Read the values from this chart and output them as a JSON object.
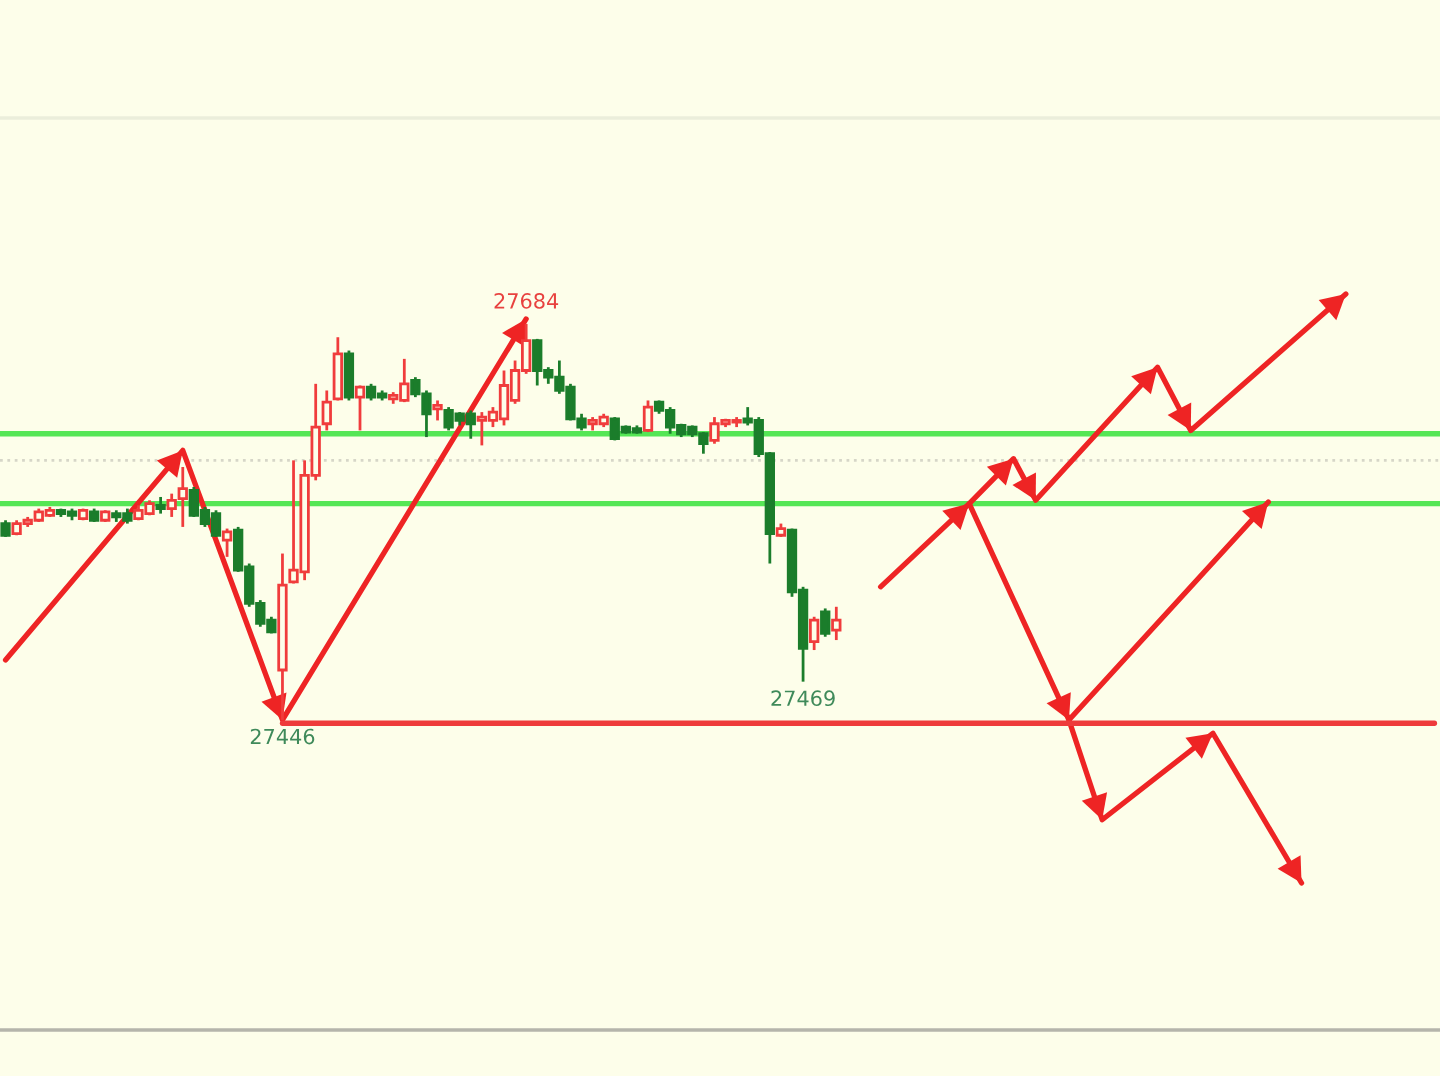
{
  "chart_data": {
    "type": "candlestick",
    "categories": [
      null,
      null,
      null,
      null,
      null,
      null,
      null,
      null,
      null,
      null,
      null,
      null,
      null,
      null,
      null,
      null,
      null,
      null,
      null,
      null,
      null,
      null,
      null,
      null,
      null,
      null,
      null,
      null,
      null,
      null,
      null,
      null,
      null,
      null,
      null,
      null,
      null,
      null,
      null,
      null,
      null,
      null,
      null,
      null,
      null,
      null,
      null,
      null,
      null,
      null,
      null,
      null,
      null,
      null,
      null,
      null,
      null,
      null,
      null,
      null,
      null,
      null,
      null,
      null,
      null,
      null,
      null,
      null,
      null,
      null,
      null,
      null,
      null,
      null,
      null,
      null,
      null,
      null,
      null,
      null,
      null,
      null,
      null,
      null,
      null,
      null,
      null,
      null,
      null,
      null,
      null,
      null,
      null,
      null,
      null,
      null,
      null,
      null,
      null,
      null,
      null,
      null,
      null,
      null,
      null,
      null,
      null,
      null,
      null,
      null,
      null,
      null,
      null,
      null,
      null,
      null,
      null,
      null,
      null,
      null,
      null,
      null,
      null,
      null,
      null,
      null,
      null,
      null,
      null,
      null
    ],
    "ohlc": [
      [
        27564,
        27566,
        27556,
        27557
      ],
      [
        27558,
        27566,
        27557,
        27564
      ],
      [
        27564,
        27568,
        27562,
        27566
      ],
      [
        27566,
        27573,
        27565,
        27571
      ],
      [
        27569,
        27574,
        27568,
        27572
      ],
      [
        27572,
        27573,
        27568,
        27570
      ],
      [
        27571,
        27573,
        27566,
        27569
      ],
      [
        27567,
        27573,
        27566,
        27572
      ],
      [
        27571,
        27573,
        27565,
        27566
      ],
      [
        27566,
        27572,
        27565,
        27571
      ],
      [
        27570,
        27572,
        27565,
        27568
      ],
      [
        27570,
        27573,
        27564,
        27566
      ],
      [
        27567,
        27575,
        27566,
        27572
      ],
      [
        27570,
        27578,
        27569,
        27576
      ],
      [
        27575,
        27580,
        27570,
        27573
      ],
      [
        27573,
        27582,
        27568,
        27578
      ],
      [
        27579,
        27598,
        27562,
        27585
      ],
      [
        27584,
        27586,
        27568,
        27569
      ],
      [
        27572,
        27574,
        27562,
        27564
      ],
      [
        27570,
        27572,
        27556,
        27557
      ],
      [
        27554,
        27561,
        27544,
        27559
      ],
      [
        27560,
        27562,
        27535,
        27536
      ],
      [
        27538,
        27540,
        27514,
        27516
      ],
      [
        27516,
        27518,
        27502,
        27504
      ],
      [
        27506,
        27508,
        27498,
        27499
      ],
      [
        27476,
        27546,
        27446,
        27527
      ],
      [
        27529,
        27602,
        27528,
        27536
      ],
      [
        27535,
        27602,
        27530,
        27593
      ],
      [
        27593,
        27648,
        27590,
        27622
      ],
      [
        27624,
        27644,
        27620,
        27637
      ],
      [
        27639,
        27676,
        27638,
        27666
      ],
      [
        27666,
        27668,
        27638,
        27640
      ],
      [
        27640,
        27647,
        27620,
        27646
      ],
      [
        27646,
        27648,
        27638,
        27640
      ],
      [
        27642,
        27644,
        27638,
        27640
      ],
      [
        27639,
        27643,
        27636,
        27641
      ],
      [
        27638,
        27663,
        27637,
        27648
      ],
      [
        27650,
        27652,
        27640,
        27642
      ],
      [
        27642,
        27644,
        27616,
        27630
      ],
      [
        27633,
        27638,
        27626,
        27635
      ],
      [
        27632,
        27634,
        27620,
        27622
      ],
      [
        27630,
        27631,
        27623,
        27626
      ],
      [
        27630,
        27632,
        27615,
        27624
      ],
      [
        27626,
        27631,
        27611,
        27628
      ],
      [
        27626,
        27634,
        27622,
        27631
      ],
      [
        27627,
        27656,
        27623,
        27647
      ],
      [
        27638,
        27662,
        27636,
        27656
      ],
      [
        27656,
        27684,
        27654,
        27674
      ],
      [
        27674,
        27675,
        27647,
        27656
      ],
      [
        27656,
        27658,
        27648,
        27652
      ],
      [
        27652,
        27662,
        27642,
        27644
      ],
      [
        27646,
        27648,
        27626,
        27627
      ],
      [
        27627,
        27630,
        27620,
        27622
      ],
      [
        27624,
        27628,
        27620,
        27626
      ],
      [
        27624,
        27630,
        27622,
        27628
      ],
      [
        27627,
        27628,
        27614,
        27615
      ],
      [
        27622,
        27623,
        27618,
        27619
      ],
      [
        27621,
        27623,
        27618,
        27619
      ],
      [
        27620,
        27638,
        27619,
        27634
      ],
      [
        27637,
        27638,
        27630,
        27632
      ],
      [
        27632,
        27634,
        27618,
        27622
      ],
      [
        27623,
        27624,
        27616,
        27618
      ],
      [
        27622,
        27623,
        27616,
        27618
      ],
      [
        27618,
        27619,
        27606,
        27612
      ],
      [
        27614,
        27628,
        27612,
        27624
      ],
      [
        27624,
        27627,
        27622,
        27626
      ],
      [
        27625,
        27628,
        27622,
        27626
      ],
      [
        27627,
        27634,
        27623,
        27625
      ],
      [
        27626,
        27628,
        27604,
        27606
      ],
      [
        27606,
        27607,
        27540,
        27558
      ],
      [
        27557,
        27564,
        27556,
        27561
      ],
      [
        27560,
        27561,
        27520,
        27523
      ],
      [
        27524,
        27526,
        27469,
        27489
      ],
      [
        27493,
        27508,
        27488,
        27506
      ],
      [
        27511,
        27513,
        27496,
        27498
      ],
      [
        27500,
        27514,
        27494,
        27506
      ],
      null,
      null,
      null,
      null,
      null,
      null,
      null,
      null,
      null,
      null,
      null,
      null,
      null,
      null,
      null,
      null,
      null,
      null,
      null,
      null,
      null,
      null,
      null,
      null,
      null,
      null,
      null,
      null,
      null,
      null,
      null,
      null,
      null,
      null,
      null,
      null,
      null,
      null,
      null,
      null,
      null,
      null,
      null,
      null,
      null,
      null,
      null,
      null,
      null,
      null,
      null,
      null,
      null,
      null
    ],
    "colors": [
      "#1b7d2b",
      "#f03c3c",
      "#f03c3c",
      "#f03c3c",
      "#f03c3c",
      "#1b7d2b",
      "#1b7d2b",
      "#f03c3c",
      "#1b7d2b",
      "#f03c3c",
      "#1b7d2b",
      "#1b7d2b",
      "#f03c3c",
      "#f03c3c",
      "#1b7d2b",
      "#f03c3c",
      "#f03c3c",
      "#1b7d2b",
      "#1b7d2b",
      "#1b7d2b",
      "#f03c3c",
      "#1b7d2b",
      "#1b7d2b",
      "#1b7d2b",
      "#1b7d2b",
      "#f03c3c",
      "#f03c3c",
      "#f03c3c",
      "#f03c3c",
      "#f03c3c",
      "#f03c3c",
      "#1b7d2b",
      "#f03c3c",
      "#1b7d2b",
      "#1b7d2b",
      "#f03c3c",
      "#f03c3c",
      "#1b7d2b",
      "#1b7d2b",
      "#f03c3c",
      "#1b7d2b",
      "#1b7d2b",
      "#1b7d2b",
      "#f03c3c",
      "#f03c3c",
      "#f03c3c",
      "#f03c3c",
      "#f03c3c",
      "#1b7d2b",
      "#1b7d2b",
      "#1b7d2b",
      "#1b7d2b",
      "#1b7d2b",
      "#f03c3c",
      "#f03c3c",
      "#1b7d2b",
      "#1b7d2b",
      "#1b7d2b",
      "#f03c3c",
      "#1b7d2b",
      "#1b7d2b",
      "#1b7d2b",
      "#1b7d2b",
      "#1b7d2b",
      "#f03c3c",
      "#f03c3c",
      "#f03c3c",
      "#1b7d2b",
      "#1b7d2b",
      "#1b7d2b",
      "#f03c3c",
      "#1b7d2b",
      "#1b7d2b",
      "#f03c3c",
      "#1b7d2b",
      "#f03c3c",
      null,
      null,
      null,
      null,
      null,
      null,
      null,
      null,
      null,
      null,
      null,
      null,
      null,
      null,
      null,
      null,
      null,
      null,
      null,
      null,
      null,
      null,
      null,
      null,
      null,
      null,
      null,
      null,
      null,
      null,
      null,
      null,
      null,
      null,
      null,
      null,
      null,
      null,
      null,
      null,
      null,
      null,
      null,
      null,
      null,
      null,
      null,
      null,
      null,
      null,
      null,
      null,
      null,
      null
    ],
    "value_labels": [
      null,
      null,
      null,
      null,
      null,
      null,
      null,
      null,
      null,
      null,
      null,
      null,
      null,
      null,
      null,
      null,
      null,
      null,
      null,
      null,
      null,
      null,
      null,
      null,
      null,
      "27446",
      null,
      null,
      null,
      null,
      null,
      null,
      null,
      null,
      null,
      null,
      null,
      null,
      null,
      null,
      null,
      null,
      null,
      null,
      null,
      null,
      null,
      "27684",
      null,
      null,
      null,
      null,
      null,
      null,
      null,
      null,
      null,
      null,
      null,
      null,
      null,
      null,
      null,
      null,
      null,
      null,
      null,
      null,
      null,
      null,
      null,
      null,
      "27469",
      null,
      null,
      null,
      null,
      null,
      null,
      null,
      null,
      null,
      null,
      null,
      null,
      null,
      null,
      null,
      null,
      null,
      null,
      null,
      null,
      null,
      null,
      null,
      null,
      null,
      null,
      null,
      null,
      null,
      null,
      null,
      null,
      null,
      null,
      null,
      null,
      null,
      null,
      null,
      null,
      null,
      null,
      null,
      null,
      null,
      null,
      null,
      null,
      null,
      null,
      null,
      null,
      null,
      null,
      null,
      null,
      null
    ],
    "series": [
      {
        "type": "line",
        "color": "#ee2424",
        "values": [
          27482,
          null,
          null,
          null,
          null,
          null,
          null,
          null,
          null,
          null,
          null,
          null,
          null,
          null,
          null,
          null,
          27608,
          null,
          null,
          null,
          null,
          null,
          null,
          null,
          null,
          27446,
          null,
          null,
          null,
          null,
          null,
          null,
          null,
          null,
          null,
          null,
          null,
          null,
          null,
          null,
          null,
          null,
          null,
          null,
          null,
          null,
          null,
          27687,
          null,
          null,
          null,
          null,
          null,
          null,
          null,
          null,
          null,
          null,
          null,
          null,
          null,
          null,
          null,
          null,
          null,
          null,
          null,
          null,
          null,
          null,
          null,
          null,
          null,
          null,
          null,
          null,
          null,
          null,
          null,
          null,
          null,
          null,
          null,
          null,
          null,
          null,
          null,
          null,
          null,
          null,
          null,
          null,
          null,
          null,
          null,
          null,
          null,
          null,
          null,
          null,
          null,
          null,
          null,
          null,
          null,
          null,
          null,
          null,
          null,
          null,
          null,
          null,
          null,
          null,
          null,
          null,
          null,
          null,
          null,
          null,
          null,
          null,
          null,
          null,
          null,
          null,
          null,
          null,
          null,
          null
        ]
      },
      {
        "type": "line",
        "color": "#ee2424",
        "values": [
          null,
          null,
          null,
          null,
          null,
          null,
          null,
          null,
          null,
          null,
          null,
          null,
          null,
          null,
          null,
          null,
          null,
          null,
          null,
          null,
          null,
          null,
          null,
          null,
          null,
          null,
          null,
          null,
          null,
          null,
          null,
          null,
          null,
          null,
          null,
          null,
          null,
          null,
          null,
          null,
          null,
          null,
          null,
          null,
          null,
          null,
          null,
          null,
          null,
          null,
          null,
          null,
          null,
          null,
          null,
          null,
          null,
          null,
          null,
          null,
          null,
          null,
          null,
          null,
          null,
          null,
          null,
          null,
          null,
          null,
          null,
          null,
          null,
          null,
          null,
          null,
          null,
          null,
          null,
          27526,
          null,
          null,
          null,
          null,
          null,
          null,
          null,
          27576,
          null,
          null,
          null,
          27603,
          null,
          27578,
          null,
          null,
          null,
          null,
          null,
          null,
          null,
          null,
          null,
          null,
          27658,
          null,
          null,
          27620,
          null,
          null,
          null,
          null,
          null,
          null,
          null,
          null,
          null,
          null,
          null,
          null,
          null,
          27702,
          null,
          null,
          null,
          null,
          null,
          null,
          null,
          null
        ]
      },
      {
        "type": "line",
        "color": "#ee2424",
        "values": [
          null,
          null,
          null,
          null,
          null,
          null,
          null,
          null,
          null,
          null,
          null,
          null,
          null,
          null,
          null,
          null,
          null,
          null,
          null,
          null,
          null,
          null,
          null,
          null,
          null,
          null,
          null,
          null,
          null,
          null,
          null,
          null,
          null,
          null,
          null,
          null,
          null,
          null,
          null,
          null,
          null,
          null,
          null,
          null,
          null,
          null,
          null,
          null,
          null,
          null,
          null,
          null,
          null,
          null,
          null,
          null,
          null,
          null,
          null,
          null,
          null,
          null,
          null,
          null,
          null,
          null,
          null,
          null,
          null,
          null,
          null,
          null,
          null,
          null,
          null,
          null,
          null,
          null,
          null,
          null,
          null,
          null,
          null,
          null,
          null,
          null,
          null,
          27576,
          null,
          null,
          null,
          null,
          null,
          null,
          null,
          null,
          27446,
          null,
          null,
          null,
          null,
          null,
          null,
          null,
          null,
          null,
          null,
          null,
          null,
          null,
          null,
          null,
          null,
          null,
          27577,
          null,
          null,
          null,
          null,
          null,
          null,
          null,
          null,
          null,
          null,
          null,
          null,
          null,
          null,
          null
        ]
      },
      {
        "type": "line",
        "color": "#ee2424",
        "values": [
          null,
          null,
          null,
          null,
          null,
          null,
          null,
          null,
          null,
          null,
          null,
          null,
          null,
          null,
          null,
          null,
          null,
          null,
          null,
          null,
          null,
          null,
          null,
          null,
          null,
          null,
          null,
          null,
          null,
          null,
          null,
          null,
          null,
          null,
          null,
          null,
          null,
          null,
          null,
          null,
          null,
          null,
          null,
          null,
          null,
          null,
          null,
          null,
          null,
          null,
          null,
          null,
          null,
          null,
          null,
          null,
          null,
          null,
          null,
          null,
          null,
          null,
          null,
          null,
          null,
          null,
          null,
          null,
          null,
          null,
          null,
          null,
          null,
          null,
          null,
          null,
          null,
          null,
          null,
          null,
          null,
          null,
          null,
          null,
          null,
          null,
          null,
          null,
          null,
          null,
          null,
          null,
          null,
          null,
          null,
          null,
          27446,
          null,
          null,
          27386,
          null,
          null,
          null,
          null,
          null,
          null,
          null,
          null,
          null,
          27438,
          null,
          null,
          null,
          null,
          null,
          null,
          null,
          27348,
          null,
          null,
          null,
          null,
          null,
          null,
          null,
          null,
          null,
          null,
          null,
          null
        ]
      },
      {
        "type": "line",
        "color": "#ee3b3b",
        "marker": "none",
        "values": [
          null,
          null,
          null,
          null,
          null,
          null,
          null,
          null,
          null,
          null,
          null,
          null,
          null,
          null,
          null,
          null,
          null,
          null,
          null,
          null,
          null,
          null,
          null,
          null,
          null,
          27444,
          null,
          null,
          null,
          null,
          null,
          null,
          null,
          null,
          null,
          null,
          null,
          null,
          null,
          null,
          null,
          null,
          null,
          null,
          null,
          null,
          null,
          null,
          null,
          null,
          null,
          null,
          null,
          null,
          null,
          null,
          null,
          null,
          null,
          null,
          null,
          null,
          null,
          null,
          null,
          null,
          null,
          null,
          null,
          null,
          null,
          null,
          null,
          null,
          null,
          null,
          null,
          null,
          null,
          null,
          null,
          null,
          null,
          null,
          null,
          null,
          null,
          null,
          null,
          null,
          null,
          null,
          null,
          null,
          null,
          null,
          null,
          null,
          null,
          null,
          null,
          null,
          null,
          null,
          null,
          null,
          null,
          null,
          null,
          null,
          null,
          null,
          null,
          null,
          null,
          null,
          null,
          null,
          null,
          null,
          null,
          null,
          null,
          null,
          null,
          null,
          null,
          null,
          null,
          27444
        ]
      }
    ],
    "ref_lines": [
      {
        "axis": "y",
        "value": 27618,
        "color": "#55e655"
      },
      {
        "axis": "y",
        "value": 27576,
        "color": "#55e655"
      },
      {
        "axis": "y",
        "value": 27602,
        "color": "#d6d6c8",
        "line_style": "dotted"
      }
    ],
    "tick_labels": false
  }
}
